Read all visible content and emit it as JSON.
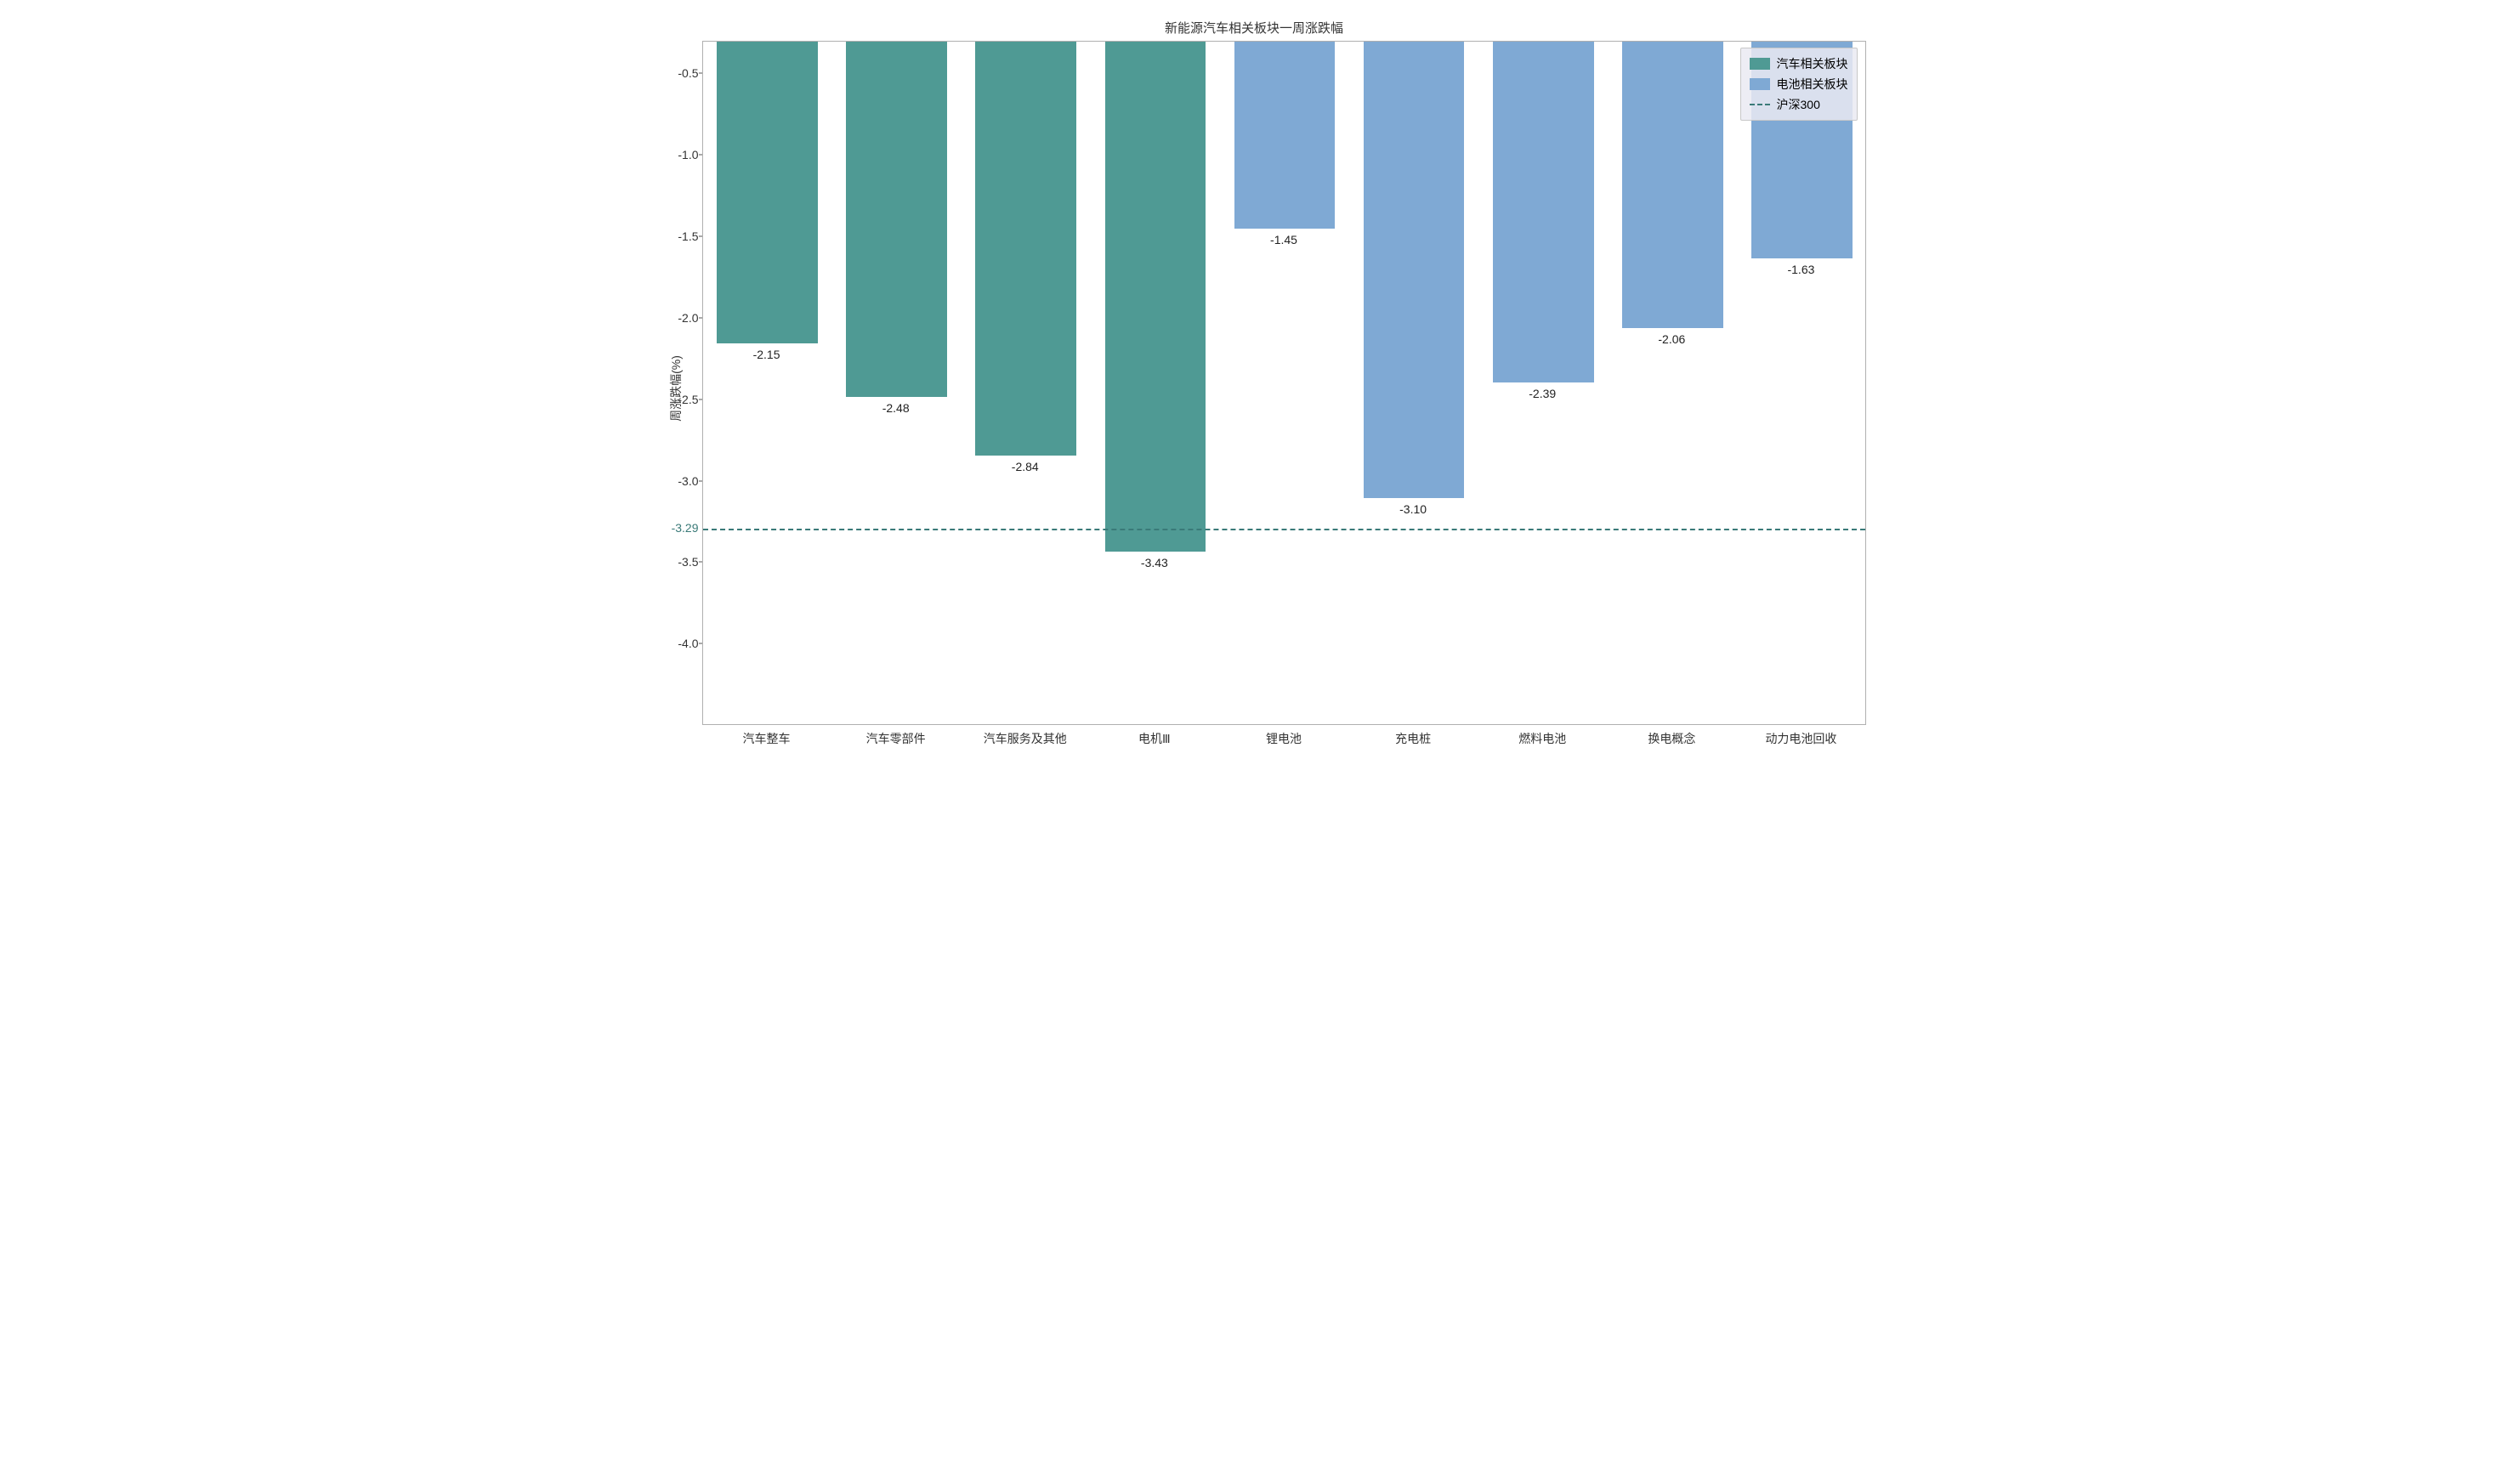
{
  "chart": {
    "type": "bar",
    "title": "新能源汽车相关板块一周涨跌幅",
    "title_fontsize": 15,
    "ylabel": "周涨跌幅(%)",
    "ylabel_fontsize": 14,
    "background_color": "#ffffff",
    "axis_border_color": "#b0b0b0",
    "ylim_min": -4.5,
    "ylim_max": -0.3,
    "yticks": [
      -0.5,
      -1.0,
      -1.5,
      -2.0,
      -2.5,
      -3.0,
      -3.5,
      -4.0
    ],
    "ytick_labels": [
      "-0.5",
      "-1.0",
      "-1.5",
      "-2.0",
      "-2.5",
      "-3.0",
      "-3.5",
      "-4.0"
    ],
    "ytick_fontsize": 14,
    "xtick_fontsize": 14,
    "categories": [
      "汽车整车",
      "汽车零部件",
      "汽车服务及其他",
      "电机Ⅲ",
      "锂电池",
      "充电桩",
      "燃料电池",
      "换电概念",
      "动力电池回收"
    ],
    "values": [
      -2.15,
      -2.48,
      -2.84,
      -3.43,
      -1.45,
      -3.1,
      -2.39,
      -2.06,
      -1.63
    ],
    "value_labels": [
      "-2.15",
      "-2.48",
      "-2.84",
      "-3.43",
      "-1.45",
      "-3.10",
      "-2.39",
      "-2.06",
      "-1.63"
    ],
    "bar_colors": [
      "#4f9a94",
      "#4f9a94",
      "#4f9a94",
      "#4f9a94",
      "#7fa9d4",
      "#7fa9d4",
      "#7fa9d4",
      "#7fa9d4",
      "#7fa9d4"
    ],
    "bar_width": 0.78,
    "reference_line": {
      "value": -3.29,
      "label": "-3.29",
      "color": "#3a7a78",
      "dash": "6,5",
      "width": 2
    },
    "legend": {
      "position": "top-right",
      "bg_color": "rgba(234,234,242,0.85)",
      "border_color": "#c8c8c8",
      "fontsize": 14,
      "items": [
        {
          "type": "swatch",
          "color": "#4f9a94",
          "label": "汽车相关板块"
        },
        {
          "type": "swatch",
          "color": "#7fa9d4",
          "label": "电池相关板块"
        },
        {
          "type": "dash",
          "color": "#3a7a78",
          "label": "沪深300"
        }
      ]
    }
  }
}
